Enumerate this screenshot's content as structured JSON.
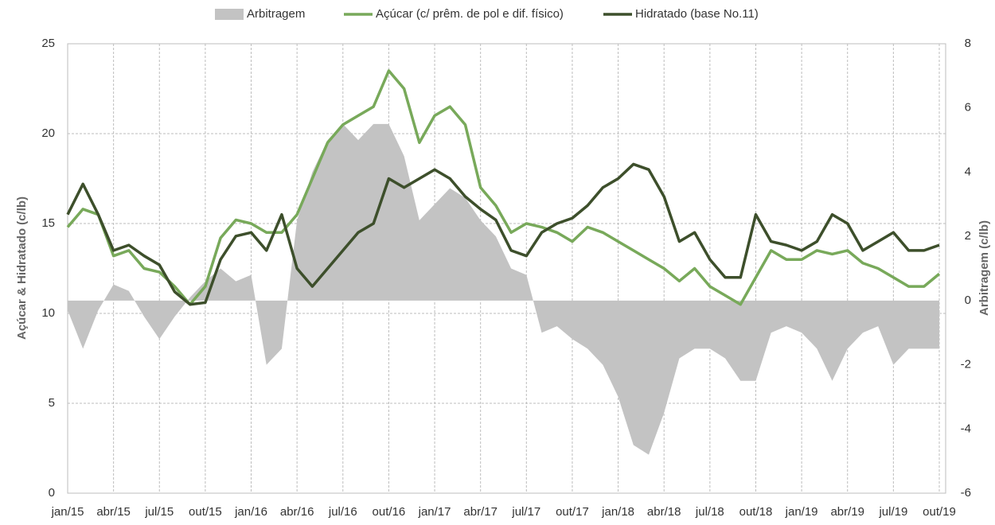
{
  "chart_data": {
    "type": "line",
    "ylabel": "Açúcar & Hidratado (c/lb)",
    "y2label": "Arbitragem (c/lb)",
    "categories": [
      "jan/15",
      null,
      null,
      "abr/15",
      null,
      null,
      "jul/15",
      null,
      null,
      "out/15",
      null,
      null,
      "jan/16",
      null,
      null,
      "abr/16",
      null,
      null,
      "jul/16",
      null,
      null,
      "out/16",
      null,
      null,
      "jan/17",
      null,
      null,
      "abr/17",
      null,
      null,
      "jul/17",
      null,
      null,
      "out/17",
      null,
      null,
      "jan/18",
      null,
      null,
      "abr/18",
      null,
      null,
      "jul/18",
      null,
      null,
      "out/18",
      null,
      null,
      "jan/19",
      null,
      null,
      "abr/19",
      null,
      null,
      "jul/19",
      null,
      null,
      "out/19"
    ],
    "series": [
      {
        "name": "Arbitragem",
        "type": "area",
        "axis": "y2",
        "color": "#c3c3c3",
        "values": [
          -0.3,
          -1.5,
          -0.3,
          0.5,
          0.3,
          -0.5,
          -1.2,
          -0.5,
          0.1,
          0.6,
          1.0,
          0.6,
          0.8,
          -2.0,
          -1.5,
          2.5,
          4.0,
          5.0,
          5.5,
          5.0,
          5.5,
          5.5,
          4.5,
          2.5,
          3.0,
          3.5,
          3.2,
          2.5,
          2.0,
          1.0,
          0.8,
          -1.0,
          -0.8,
          -1.2,
          -1.5,
          -2.0,
          -3.0,
          -4.5,
          -4.8,
          -3.5,
          -1.8,
          -1.5,
          -1.5,
          -1.8,
          -2.5,
          -2.5,
          -1.0,
          -0.8,
          -1.0,
          -1.5,
          -2.5,
          -1.5,
          -1.0,
          -0.8,
          -2.0,
          -1.5,
          -1.5,
          -1.5
        ]
      },
      {
        "name": "Açúcar (c/ prêm. de pol e dif. físico)",
        "color": "#78a95a",
        "values": [
          14.8,
          15.8,
          15.5,
          13.2,
          13.5,
          12.5,
          12.3,
          11.5,
          10.5,
          11.5,
          14.2,
          15.2,
          15.0,
          14.5,
          14.5,
          15.5,
          17.5,
          19.5,
          20.5,
          21.0,
          21.5,
          23.5,
          22.5,
          19.5,
          21.0,
          21.5,
          20.5,
          17.0,
          16.0,
          14.5,
          15.0,
          14.8,
          14.5,
          14.0,
          14.8,
          14.5,
          14.0,
          13.5,
          13.0,
          12.5,
          11.8,
          12.5,
          11.5,
          11.0,
          10.5,
          12.0,
          13.5,
          13.0,
          13.0,
          13.5,
          13.3,
          13.5,
          12.8,
          12.5,
          12.0,
          11.5,
          11.5,
          12.2
        ]
      },
      {
        "name": "Hidratado (base No.11)",
        "color": "#3d4f2b",
        "values": [
          15.5,
          17.2,
          15.5,
          13.5,
          13.8,
          13.2,
          12.7,
          11.2,
          10.5,
          10.6,
          13.0,
          14.3,
          14.5,
          13.5,
          15.5,
          12.5,
          11.5,
          12.5,
          13.5,
          14.5,
          15.0,
          17.5,
          17.0,
          17.5,
          18.0,
          17.5,
          16.5,
          15.8,
          15.2,
          13.5,
          13.2,
          14.5,
          15.0,
          15.3,
          16.0,
          17.0,
          17.5,
          18.3,
          18.0,
          16.5,
          14.0,
          14.5,
          13.0,
          12.0,
          12.0,
          15.5,
          14.0,
          13.8,
          13.5,
          14.0,
          15.5,
          15.0,
          13.5,
          14.0,
          14.5,
          13.5,
          13.5,
          13.8
        ]
      }
    ],
    "ylim": [
      0,
      25
    ],
    "yticks": [
      0,
      5,
      10,
      15,
      20,
      25
    ],
    "y2lim": [
      -6,
      8
    ],
    "y2ticks": [
      -6,
      -4,
      -2,
      0,
      2,
      4,
      6,
      8
    ],
    "grid": true,
    "legend": "top"
  }
}
